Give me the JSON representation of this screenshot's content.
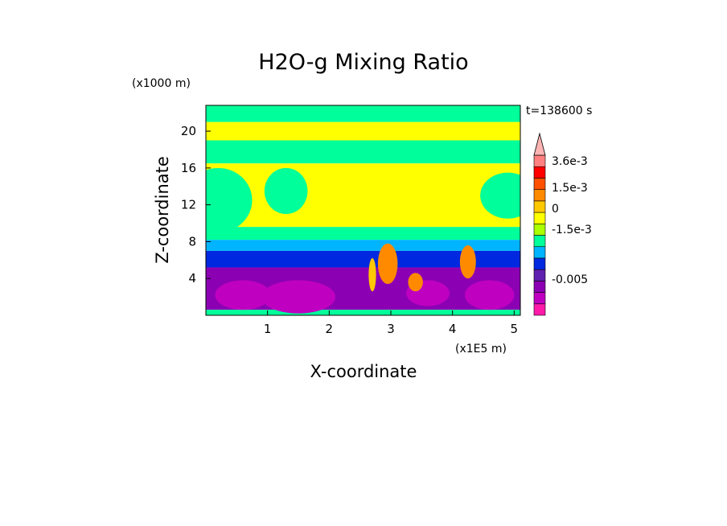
{
  "chart_data": {
    "type": "heatmap",
    "title": "H2O-g Mixing Ratio",
    "xlabel": "X-coordinate",
    "ylabel": "Z-coordinate",
    "x_scale_label": "(x1E5 m)",
    "y_scale_label": "(x1000 m)",
    "time_label": "t=138600 s",
    "xlim": [
      0,
      5.1
    ],
    "ylim": [
      0,
      22.8
    ],
    "x_ticks": [
      1,
      2,
      3,
      4,
      5
    ],
    "y_ticks": [
      4,
      8,
      12,
      16,
      20
    ],
    "colorbar": {
      "colors": [
        "#ff1aaa",
        "#c000c0",
        "#8c00b4",
        "#6020b0",
        "#0028e0",
        "#00b4ff",
        "#00ff9a",
        "#aaff00",
        "#ffff00",
        "#ffc800",
        "#ff8a00",
        "#ff5000",
        "#ff0000",
        "#ff8080",
        "#ffb4b4"
      ],
      "labels": [
        {
          "text": "3.6e-3",
          "value": 0.0036
        },
        {
          "text": "1.5e-3",
          "value": 0.0015
        },
        {
          "text": "0",
          "value": 0
        },
        {
          "text": "-1.5e-3",
          "value": -0.0015
        },
        {
          "text": "-0.005",
          "value": -0.005
        }
      ]
    },
    "field": [
      {
        "z0": 0,
        "z1": 0.6,
        "color": "#00ff9a"
      },
      {
        "z0": 0.6,
        "z1": 5.2,
        "color": "#8c00b4"
      },
      {
        "z0": 5.2,
        "z1": 7.0,
        "color": "#0028e0"
      },
      {
        "z0": 7.0,
        "z1": 8.2,
        "color": "#00b4ff"
      },
      {
        "z0": 8.2,
        "z1": 9.6,
        "color": "#00ff9a"
      },
      {
        "z0": 9.6,
        "z1": 16.5,
        "color": "#ffff00"
      },
      {
        "z0": 16.5,
        "z1": 19.0,
        "color": "#00ff9a"
      },
      {
        "z0": 19.0,
        "z1": 21.0,
        "color": "#ffff00"
      },
      {
        "z0": 21.0,
        "z1": 22.8,
        "color": "#00ff9a"
      }
    ],
    "features": [
      {
        "x": 0.6,
        "z": 2.2,
        "rx": 0.45,
        "rz": 1.6,
        "color": "#c000c0"
      },
      {
        "x": 1.5,
        "z": 2.0,
        "rx": 0.6,
        "rz": 1.8,
        "color": "#c000c0"
      },
      {
        "x": 3.6,
        "z": 2.4,
        "rx": 0.35,
        "rz": 1.4,
        "color": "#c000c0"
      },
      {
        "x": 4.6,
        "z": 2.2,
        "rx": 0.4,
        "rz": 1.6,
        "color": "#c000c0"
      },
      {
        "x": 2.95,
        "z": 5.6,
        "rx": 0.16,
        "rz": 2.2,
        "color": "#ff8a00"
      },
      {
        "x": 3.4,
        "z": 3.6,
        "rx": 0.12,
        "rz": 1.0,
        "color": "#ff8a00"
      },
      {
        "x": 4.25,
        "z": 5.8,
        "rx": 0.13,
        "rz": 1.8,
        "color": "#ff8a00"
      },
      {
        "x": 2.7,
        "z": 4.4,
        "rx": 0.06,
        "rz": 1.8,
        "color": "#ffc800"
      },
      {
        "x": 0.2,
        "z": 12.5,
        "rx": 0.55,
        "rz": 3.5,
        "color": "#00ff9a"
      },
      {
        "x": 1.3,
        "z": 13.5,
        "rx": 0.35,
        "rz": 2.5,
        "color": "#00ff9a"
      },
      {
        "x": 4.9,
        "z": 13.0,
        "rx": 0.45,
        "rz": 2.5,
        "color": "#00ff9a"
      }
    ]
  }
}
